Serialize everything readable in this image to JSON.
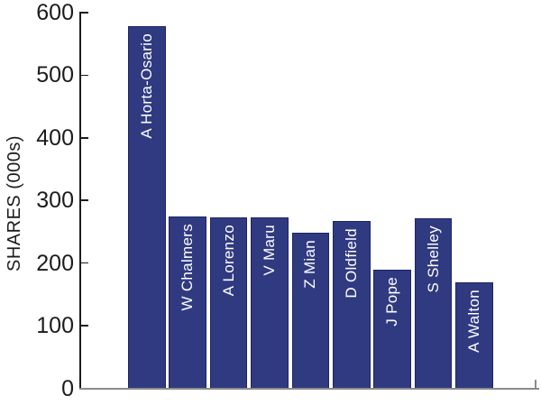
{
  "chart_data": {
    "type": "bar",
    "title": "",
    "xlabel": "",
    "ylabel": "SHARES (000s)",
    "categories": [
      "A Horta-Osario",
      "W Chalmers",
      "A Lorenzo",
      "V Maru",
      "Z Mian",
      "D Oldfield",
      "J Pope",
      "S Shelley",
      "A Walton"
    ],
    "values": [
      578,
      275,
      273,
      273,
      248,
      267,
      190,
      271,
      170
    ],
    "ylim": [
      0,
      600
    ],
    "yticks": [
      0,
      100,
      200,
      300,
      400,
      500,
      600
    ],
    "grid": false,
    "legend": false,
    "colors": {
      "background": "#ffffff",
      "bar_fill": "#303a80",
      "bar_edge": "#1e2566",
      "bar_text": "#ffffff",
      "axis": "#1c1c1c",
      "tick_label": "#1c1c1c",
      "baseline": "#8c8c8c"
    }
  }
}
